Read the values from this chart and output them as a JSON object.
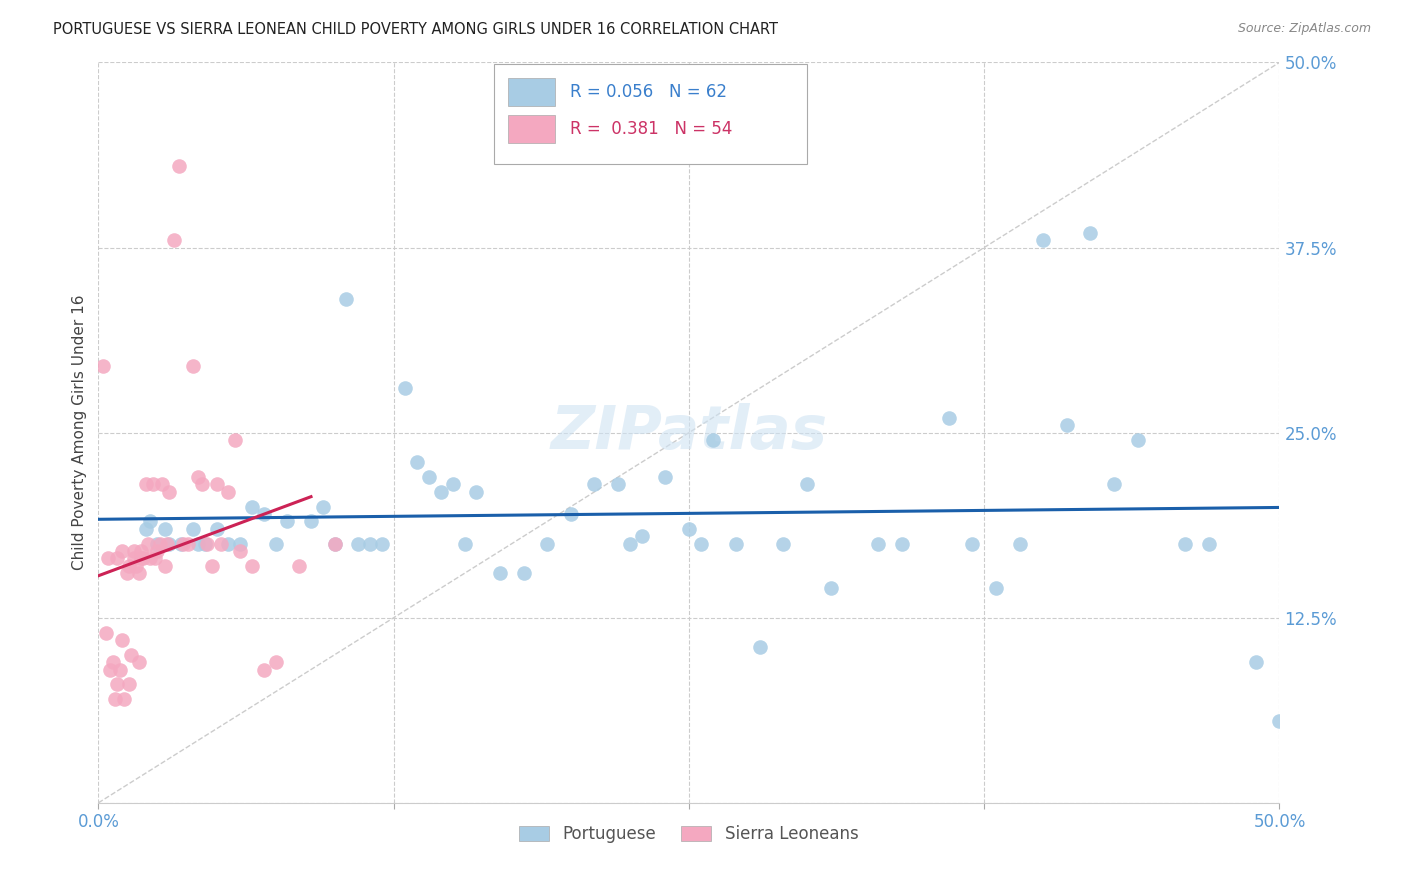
{
  "title": "PORTUGUESE VS SIERRA LEONEAN CHILD POVERTY AMONG GIRLS UNDER 16 CORRELATION CHART",
  "source": "Source: ZipAtlas.com",
  "ylabel": "Child Poverty Among Girls Under 16",
  "xlim": [
    0.0,
    0.5
  ],
  "ylim": [
    0.0,
    0.5
  ],
  "blue_color": "#a8cce4",
  "pink_color": "#f4a8c0",
  "line_blue": "#1a5faa",
  "line_pink": "#cc2255",
  "diagonal_color": "#cccccc",
  "port_x": [
    0.02,
    0.022,
    0.025,
    0.028,
    0.03,
    0.035,
    0.04,
    0.042,
    0.045,
    0.05,
    0.055,
    0.06,
    0.065,
    0.07,
    0.075,
    0.08,
    0.09,
    0.095,
    0.1,
    0.105,
    0.11,
    0.115,
    0.12,
    0.13,
    0.135,
    0.14,
    0.145,
    0.15,
    0.155,
    0.16,
    0.17,
    0.18,
    0.19,
    0.2,
    0.21,
    0.22,
    0.225,
    0.23,
    0.24,
    0.25,
    0.255,
    0.26,
    0.27,
    0.28,
    0.29,
    0.3,
    0.31,
    0.33,
    0.34,
    0.36,
    0.37,
    0.38,
    0.39,
    0.4,
    0.41,
    0.42,
    0.43,
    0.44,
    0.46,
    0.47,
    0.49,
    0.5
  ],
  "port_y": [
    0.185,
    0.19,
    0.175,
    0.185,
    0.175,
    0.175,
    0.185,
    0.175,
    0.175,
    0.185,
    0.175,
    0.175,
    0.2,
    0.195,
    0.175,
    0.19,
    0.19,
    0.2,
    0.175,
    0.34,
    0.175,
    0.175,
    0.175,
    0.28,
    0.23,
    0.22,
    0.21,
    0.215,
    0.175,
    0.21,
    0.155,
    0.155,
    0.175,
    0.195,
    0.215,
    0.215,
    0.175,
    0.18,
    0.22,
    0.185,
    0.175,
    0.245,
    0.175,
    0.105,
    0.175,
    0.215,
    0.145,
    0.175,
    0.175,
    0.26,
    0.175,
    0.145,
    0.175,
    0.38,
    0.255,
    0.385,
    0.215,
    0.245,
    0.175,
    0.175,
    0.095,
    0.055
  ],
  "sier_x": [
    0.002,
    0.003,
    0.004,
    0.005,
    0.006,
    0.007,
    0.008,
    0.008,
    0.009,
    0.01,
    0.01,
    0.011,
    0.012,
    0.013,
    0.013,
    0.014,
    0.015,
    0.015,
    0.016,
    0.017,
    0.017,
    0.018,
    0.018,
    0.019,
    0.02,
    0.021,
    0.022,
    0.023,
    0.024,
    0.025,
    0.026,
    0.027,
    0.028,
    0.029,
    0.03,
    0.032,
    0.034,
    0.036,
    0.038,
    0.04,
    0.042,
    0.044,
    0.046,
    0.048,
    0.05,
    0.052,
    0.055,
    0.058,
    0.06,
    0.065,
    0.07,
    0.075,
    0.085,
    0.1
  ],
  "sier_y": [
    0.295,
    0.115,
    0.165,
    0.09,
    0.095,
    0.07,
    0.08,
    0.165,
    0.09,
    0.17,
    0.11,
    0.07,
    0.155,
    0.16,
    0.08,
    0.1,
    0.165,
    0.17,
    0.16,
    0.155,
    0.095,
    0.165,
    0.17,
    0.165,
    0.215,
    0.175,
    0.165,
    0.215,
    0.165,
    0.17,
    0.175,
    0.215,
    0.16,
    0.175,
    0.21,
    0.38,
    0.43,
    0.175,
    0.175,
    0.295,
    0.22,
    0.215,
    0.175,
    0.16,
    0.215,
    0.175,
    0.21,
    0.245,
    0.17,
    0.16,
    0.09,
    0.095,
    0.16,
    0.175
  ]
}
